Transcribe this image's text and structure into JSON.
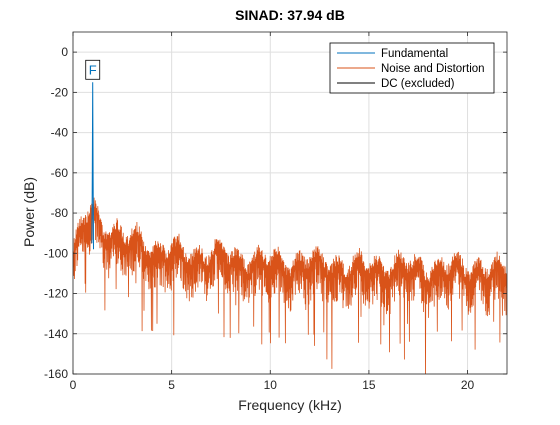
{
  "chart_data": {
    "type": "line",
    "title": "SINAD:  37.94 dB",
    "xlabel": "Frequency (kHz)",
    "ylabel": "Power (dB)",
    "xlim": [
      0,
      22
    ],
    "ylim": [
      -160,
      10
    ],
    "xticks": [
      0,
      5,
      10,
      15,
      20
    ],
    "yticks": [
      0,
      -20,
      -40,
      -60,
      -80,
      -100,
      -120,
      -140,
      -160
    ],
    "xtick_labels": [
      "0",
      "5",
      "10",
      "15",
      "20"
    ],
    "ytick_labels": [
      "0",
      "-20",
      "-40",
      "-60",
      "-80",
      "-100",
      "-120",
      "-140",
      "-160"
    ],
    "grid": true,
    "legend_position": "top-right",
    "series": [
      {
        "name": "Fundamental",
        "color": "#0072BD",
        "x": [
          0.96,
          0.98,
          1.0,
          1.02,
          1.04
        ],
        "y": [
          -95,
          -60,
          -15,
          -62,
          -98
        ]
      },
      {
        "name": "Noise and Distortion",
        "color": "#D95319",
        "x": [
          0.0,
          0.5,
          1.0,
          1.5,
          2.0,
          2.5,
          3.0,
          4.0,
          5.0,
          6.0,
          7.0,
          8.0,
          9.0,
          10.0,
          11.0,
          12.0,
          13.0,
          14.0,
          15.0,
          16.0,
          17.0,
          18.0,
          19.0,
          20.0,
          21.0,
          22.0
        ],
        "y": [
          -95,
          -82,
          -72,
          -84,
          -82,
          -90,
          -88,
          -94,
          -95,
          -97,
          -96,
          -98,
          -99,
          -100,
          -101,
          -100,
          -101,
          -103,
          -102,
          -103,
          -102,
          -104,
          -103,
          -103,
          -104,
          -105
        ]
      },
      {
        "name": "DC (excluded)",
        "color": "#000000",
        "x": [],
        "y": []
      }
    ],
    "annotations": [
      {
        "text": "F",
        "x": 1.0,
        "y": -14
      }
    ]
  }
}
